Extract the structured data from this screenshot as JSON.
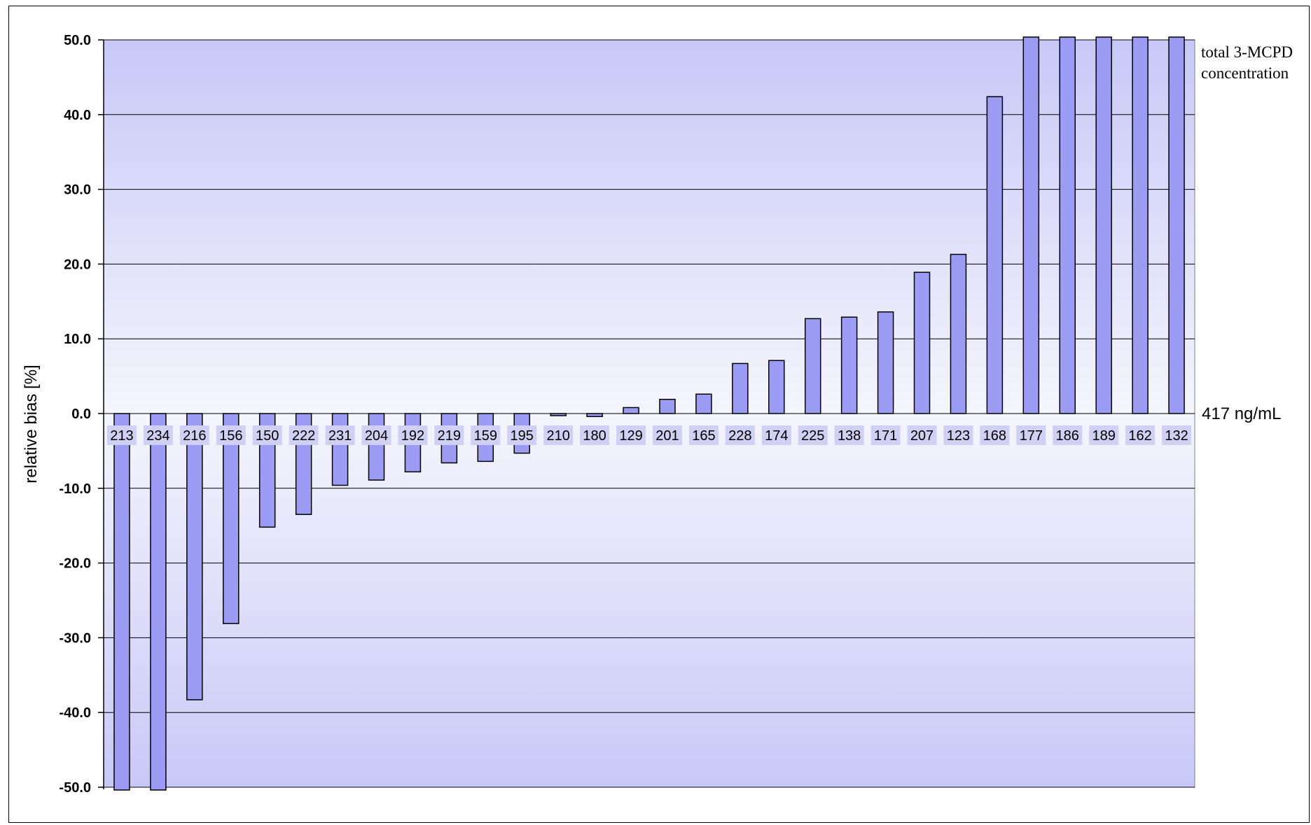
{
  "chart_data": {
    "type": "bar",
    "ylabel": "relative bias [%]",
    "ylim": [
      -50,
      50
    ],
    "ytick_step": 10,
    "ytick_labels": [
      "-50.0",
      "-40.0",
      "-30.0",
      "-20.0",
      "-10.0",
      "0.0",
      "10.0",
      "20.0",
      "30.0",
      "40.0",
      "50.0"
    ],
    "grid": true,
    "categories": [
      "213",
      "234",
      "216",
      "156",
      "150",
      "222",
      "231",
      "204",
      "192",
      "219",
      "159",
      "195",
      "210",
      "180",
      "129",
      "201",
      "165",
      "228",
      "174",
      "225",
      "138",
      "171",
      "207",
      "123",
      "168",
      "177",
      "186",
      "189",
      "162",
      "132"
    ],
    "values": [
      -50,
      -50,
      -38.3,
      -28.1,
      -15.2,
      -13.5,
      -9.6,
      -8.9,
      -7.8,
      -6.6,
      -6.4,
      -5.3,
      0,
      -0.4,
      0.8,
      1.9,
      2.6,
      6.7,
      7.1,
      12.7,
      12.9,
      13.6,
      18.9,
      21.3,
      42.4,
      50,
      50,
      50,
      50,
      50
    ],
    "annotations": {
      "series_label": [
        "total 3-MCPD",
        "concentration"
      ],
      "reference_value": "417 ng/mL"
    },
    "colors": {
      "bar_fill": "#9c9cf4",
      "bar_stroke": "#000000",
      "plot_bg_edge": "#c8c8f8",
      "plot_bg_center": "#f5f5fd",
      "label_bg": "#d0d0f4",
      "grid": "#000000"
    }
  }
}
